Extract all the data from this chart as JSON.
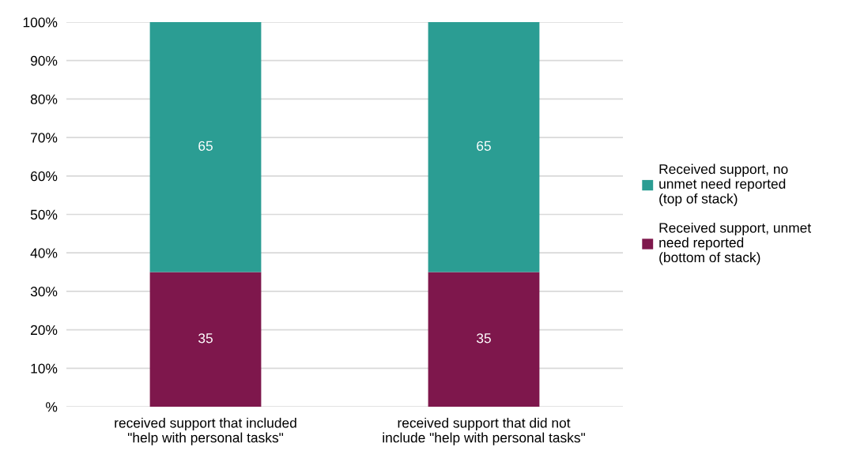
{
  "chart_data": {
    "type": "bar",
    "stacked": true,
    "categories": [
      "received support that included\n\"help with personal tasks\"",
      "received support that did not\ninclude \"help with personal tasks\""
    ],
    "series": [
      {
        "name": "Received support, unmet\nneed reported\n(bottom of stack)",
        "color": "#7e174c",
        "values": [
          35,
          35
        ]
      },
      {
        "name": "Received support, no\nunmet need reported\n(top of stack)",
        "color": "#2b9d93",
        "values": [
          65,
          65
        ]
      }
    ],
    "ylim": [
      0,
      100
    ],
    "yticks": [
      {
        "value": 0,
        "label": "%"
      },
      {
        "value": 10,
        "label": "10%"
      },
      {
        "value": 20,
        "label": "20%"
      },
      {
        "value": 30,
        "label": "30%"
      },
      {
        "value": 40,
        "label": "40%"
      },
      {
        "value": 50,
        "label": "50%"
      },
      {
        "value": 60,
        "label": "60%"
      },
      {
        "value": 70,
        "label": "70%"
      },
      {
        "value": 80,
        "label": "80%"
      },
      {
        "value": 90,
        "label": "90%"
      },
      {
        "value": 100,
        "label": "100%"
      }
    ],
    "grid": "y",
    "legend": "right",
    "data_labels": true
  }
}
